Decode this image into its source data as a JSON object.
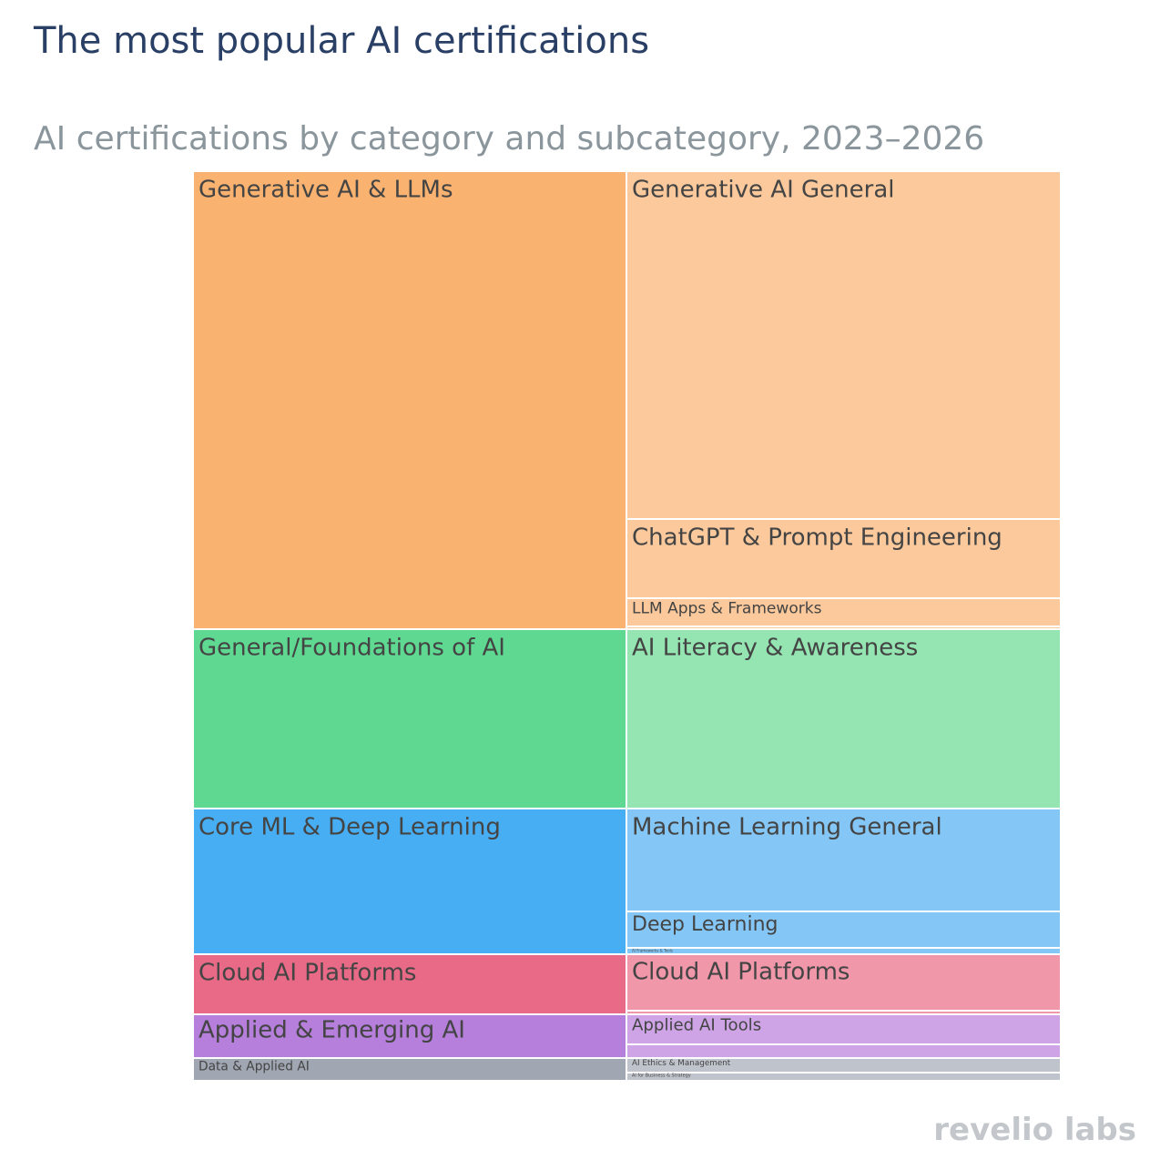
{
  "chart_data": {
    "type": "icicle",
    "title": "The most popular AI certifications",
    "subtitle": "AI certifications by category and subcategory, 2023–2026",
    "logo": "revelio labs",
    "categories": [
      {
        "name": "Generative AI & LLMs",
        "value": 50.3,
        "color": "#f9b26f",
        "children": [
          {
            "name": "Generative AI General",
            "value": 38.2,
            "color": "#fbc99b"
          },
          {
            "name": "ChatGPT & Prompt Engineering",
            "value": 8.7,
            "color": "#fbc99b"
          },
          {
            "name": "LLM Apps & Frameworks",
            "value": 3.1,
            "color": "#fbc99b"
          },
          {
            "name": null,
            "value": 0.3,
            "color": "#fbc99b"
          }
        ]
      },
      {
        "name": "General/Foundations of AI",
        "value": 19.7,
        "color": "#5fd991",
        "children": [
          {
            "name": "AI Literacy & Awareness",
            "value": 19.7,
            "color": "#94e5b1"
          }
        ]
      },
      {
        "name": "Core ML & Deep Learning",
        "value": 16.0,
        "color": "#48aef3",
        "children": [
          {
            "name": "Machine Learning General",
            "value": 11.3,
            "color": "#84c7f6"
          },
          {
            "name": "Deep Learning",
            "value": 4.0,
            "color": "#84c7f6"
          },
          {
            "name": "AI Frameworks & Tools",
            "value": 0.7,
            "color": "#84c7f6"
          }
        ]
      },
      {
        "name": "Cloud AI Platforms",
        "value": 6.6,
        "color": "#e86a86",
        "children": [
          {
            "name": "Cloud AI Platforms",
            "value": 6.2,
            "color": "#f097aa"
          },
          {
            "name": null,
            "value": 0.4,
            "color": "#f097aa"
          }
        ]
      },
      {
        "name": "Applied & Emerging AI",
        "value": 4.8,
        "color": "#b57fdb",
        "children": [
          {
            "name": "Applied AI Tools",
            "value": 3.3,
            "color": "#cfa4e6"
          },
          {
            "name": null,
            "value": 1.5,
            "color": "#cfa4e6"
          }
        ]
      },
      {
        "name": "Data & Applied AI",
        "value": 2.5,
        "color": "#a0a6b2",
        "children": [
          {
            "name": "AI Ethics & Management",
            "value": 1.6,
            "color": "#bfc3cc"
          },
          {
            "name": "AI for Business & Strategy",
            "value": 0.9,
            "color": "#bfc3cc"
          }
        ]
      }
    ]
  }
}
